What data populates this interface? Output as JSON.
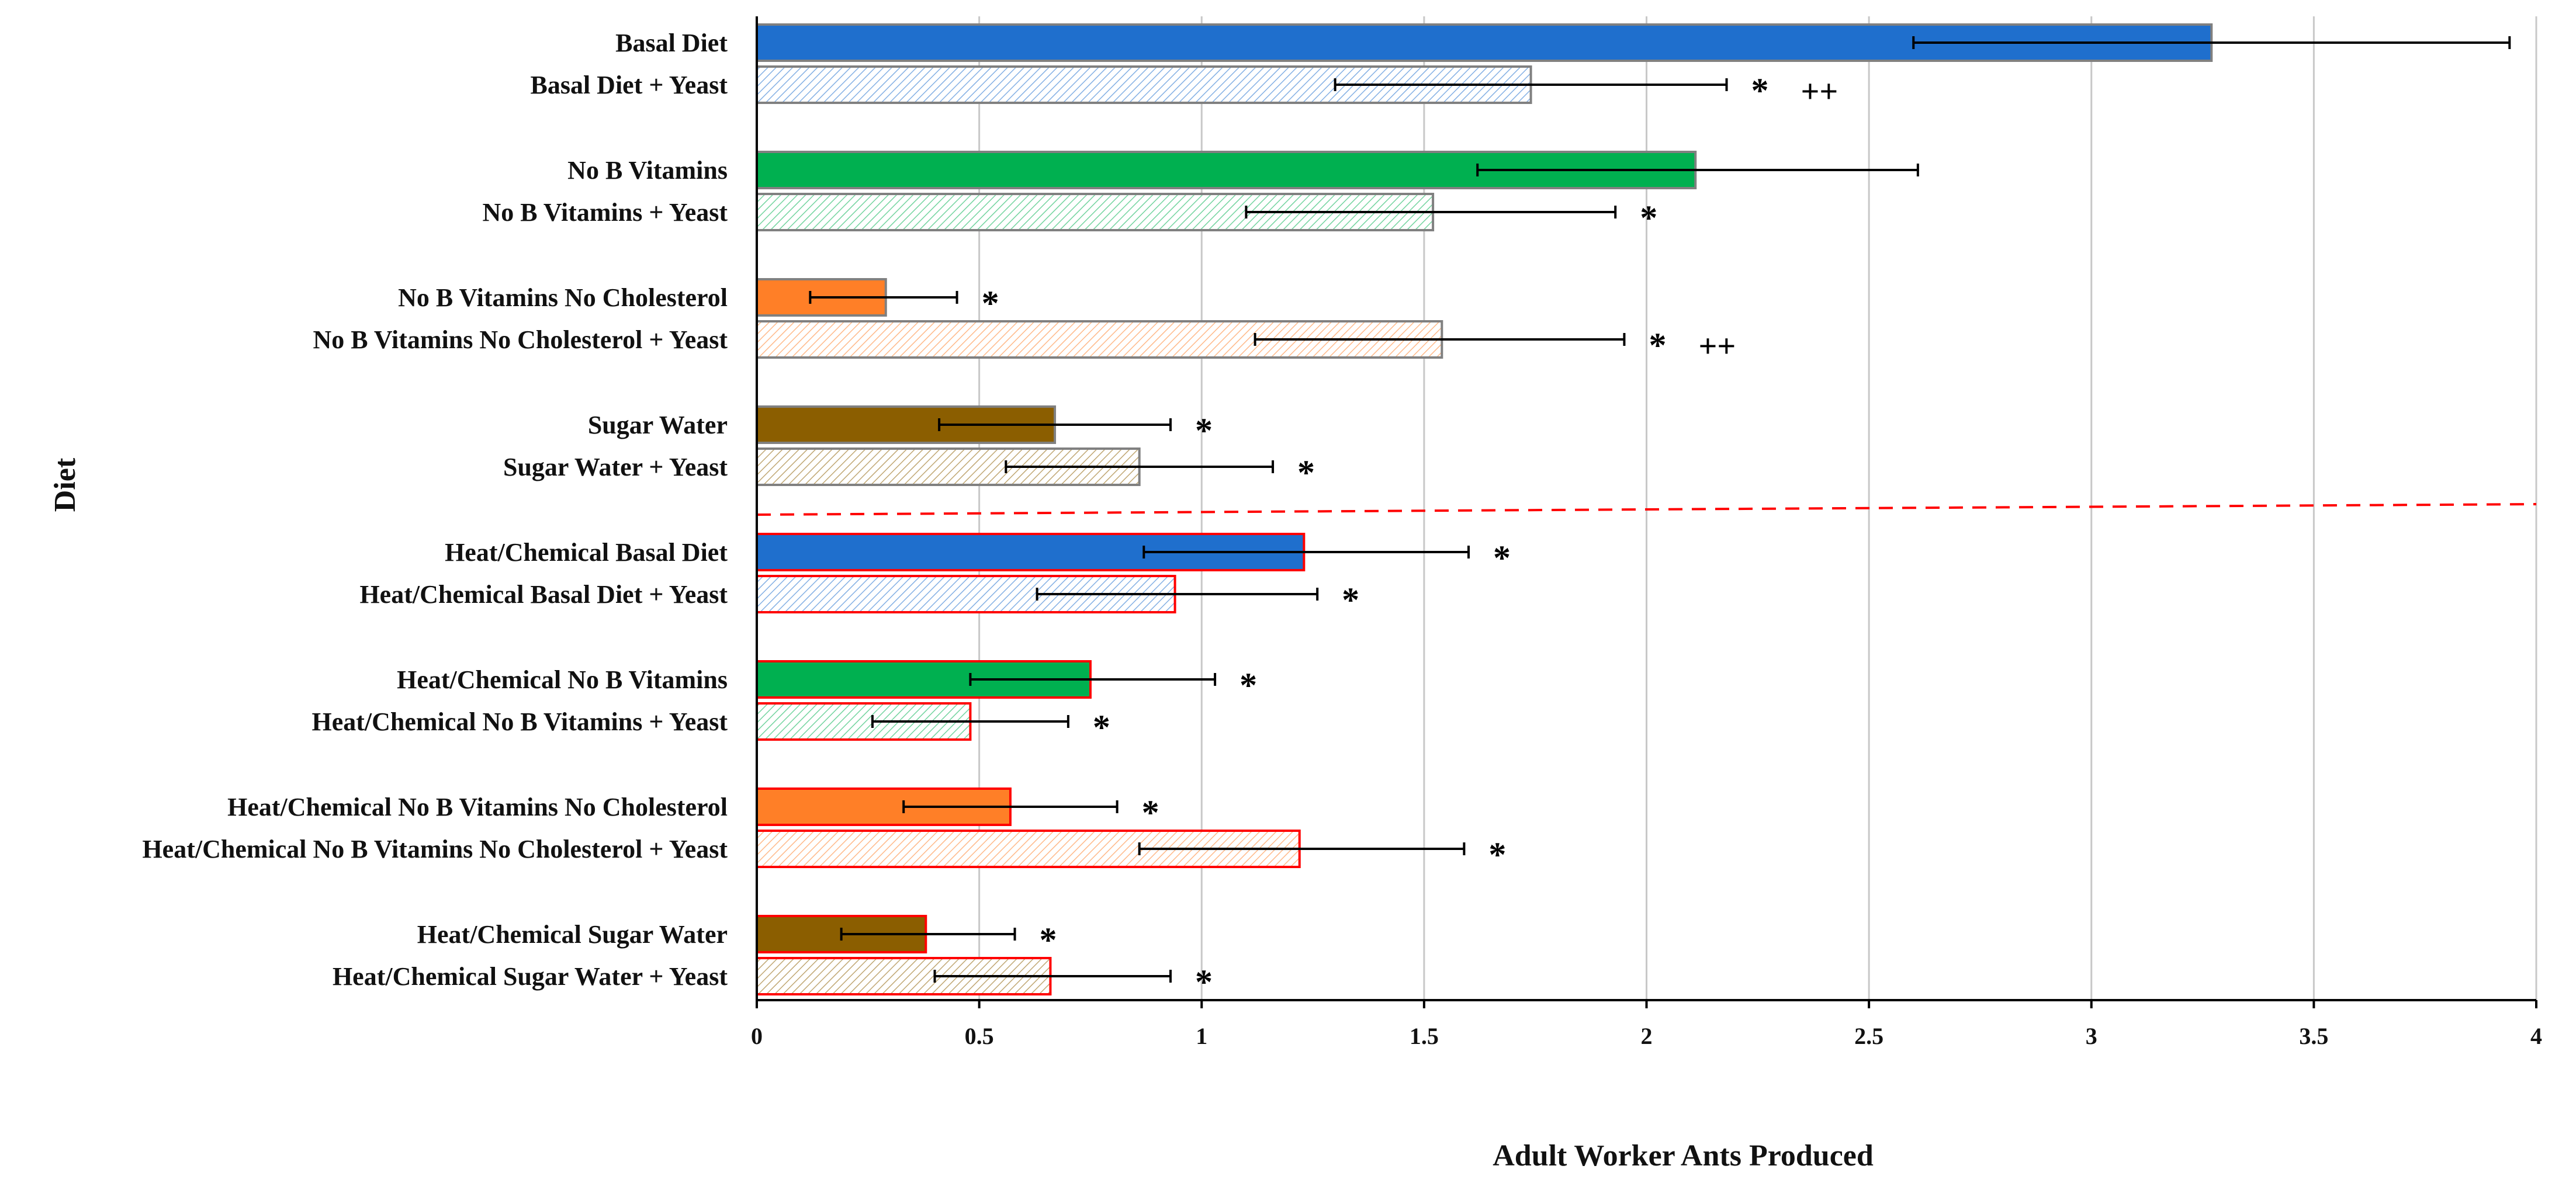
{
  "chart_data": {
    "type": "bar",
    "orientation": "horizontal",
    "title": "",
    "xlabel": "Adult Worker Ants Produced",
    "ylabel": "Diet",
    "xlim": [
      0,
      4
    ],
    "xticks": [
      "0",
      "0.5",
      "1",
      "1.5",
      "2",
      "2.5",
      "3",
      "3.5",
      "4"
    ],
    "xtick_values": [
      0,
      0.5,
      1,
      1.5,
      2,
      2.5,
      3,
      3.5,
      4
    ],
    "grid": "vertical",
    "colors": {
      "blue": "#1f6fcd",
      "green": "#00b050",
      "orange": "#ff7f27",
      "brown": "#8b5e00",
      "outline_gray": "#808080",
      "outline_red": "#ff0000",
      "divider": "#ff0000"
    },
    "divider_after_index": 7,
    "bars": [
      {
        "label": "Basal Diet",
        "value": 3.27,
        "err_low": 2.6,
        "err_high": 3.94,
        "color": "blue",
        "pattern": "solid",
        "outline": "outline_gray",
        "annotation": ""
      },
      {
        "label": "Basal Diet + Yeast",
        "value": 1.74,
        "err_low": 1.3,
        "err_high": 2.18,
        "color": "blue",
        "pattern": "hatch",
        "outline": "outline_gray",
        "annotation": "*   ++"
      },
      {
        "label": "No B Vitamins",
        "value": 2.11,
        "err_low": 1.62,
        "err_high": 2.61,
        "color": "green",
        "pattern": "solid",
        "outline": "outline_gray",
        "annotation": ""
      },
      {
        "label": "No B Vitamins + Yeast",
        "value": 1.52,
        "err_low": 1.1,
        "err_high": 1.93,
        "color": "green",
        "pattern": "hatch",
        "outline": "outline_gray",
        "annotation": "*"
      },
      {
        "label": "No B Vitamins No Cholesterol",
        "value": 0.29,
        "err_low": 0.12,
        "err_high": 0.45,
        "color": "orange",
        "pattern": "solid",
        "outline": "outline_gray",
        "annotation": "*"
      },
      {
        "label": "No B Vitamins No Cholesterol + Yeast",
        "value": 1.54,
        "err_low": 1.12,
        "err_high": 1.95,
        "color": "orange",
        "pattern": "hatch",
        "outline": "outline_gray",
        "annotation": "*   ++"
      },
      {
        "label": "Sugar Water",
        "value": 0.67,
        "err_low": 0.41,
        "err_high": 0.93,
        "color": "brown",
        "pattern": "solid",
        "outline": "outline_gray",
        "annotation": "*"
      },
      {
        "label": "Sugar Water + Yeast",
        "value": 0.86,
        "err_low": 0.56,
        "err_high": 1.16,
        "color": "brown",
        "pattern": "hatch",
        "outline": "outline_gray",
        "annotation": "*"
      },
      {
        "label": "Heat/Chemical Basal Diet",
        "value": 1.23,
        "err_low": 0.87,
        "err_high": 1.6,
        "color": "blue",
        "pattern": "solid",
        "outline": "outline_red",
        "annotation": "*"
      },
      {
        "label": "Heat/Chemical Basal Diet + Yeast",
        "value": 0.94,
        "err_low": 0.63,
        "err_high": 1.26,
        "color": "blue",
        "pattern": "hatch",
        "outline": "outline_red",
        "annotation": "*"
      },
      {
        "label": "Heat/Chemical No B Vitamins",
        "value": 0.75,
        "err_low": 0.48,
        "err_high": 1.03,
        "color": "green",
        "pattern": "solid",
        "outline": "outline_red",
        "annotation": "*"
      },
      {
        "label": "Heat/Chemical No B Vitamins + Yeast",
        "value": 0.48,
        "err_low": 0.26,
        "err_high": 0.7,
        "color": "green",
        "pattern": "hatch",
        "outline": "outline_red",
        "annotation": "*"
      },
      {
        "label": "Heat/Chemical No B Vitamins No Cholesterol",
        "value": 0.57,
        "err_low": 0.33,
        "err_high": 0.81,
        "color": "orange",
        "pattern": "solid",
        "outline": "outline_red",
        "annotation": "*"
      },
      {
        "label": "Heat/Chemical No B Vitamins No Cholesterol + Yeast",
        "value": 1.22,
        "err_low": 0.86,
        "err_high": 1.59,
        "color": "orange",
        "pattern": "hatch",
        "outline": "outline_red",
        "annotation": "*"
      },
      {
        "label": "Heat/Chemical Sugar Water",
        "value": 0.38,
        "err_low": 0.19,
        "err_high": 0.58,
        "color": "brown",
        "pattern": "solid",
        "outline": "outline_red",
        "annotation": "*"
      },
      {
        "label": "Heat/Chemical Sugar Water + Yeast",
        "value": 0.66,
        "err_low": 0.4,
        "err_high": 0.93,
        "color": "brown",
        "pattern": "hatch",
        "outline": "outline_red",
        "annotation": "*"
      }
    ]
  }
}
